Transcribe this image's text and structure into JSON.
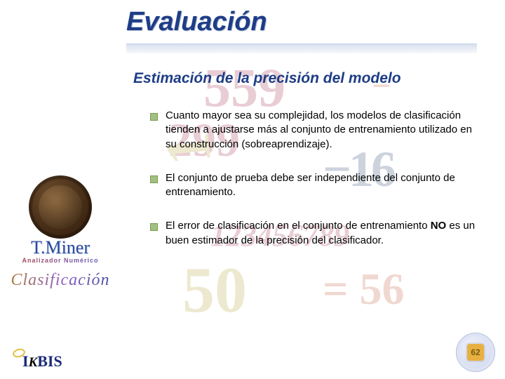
{
  "title": "Evaluación",
  "subtitle": "Estimación de la precisión del modelo",
  "bullets": {
    "b1": "Cuanto mayor sea su complejidad, los modelos de clasificación tienden a ajustarse más al conjunto de entrenamiento utilizado en su construcción (sobreaprendizaje).",
    "b2": "El conjunto de prueba debe ser independiente del conjunto de entrenamiento.",
    "b3_pre": "El error de clasificación en el conjunto de entrenamiento ",
    "b3_strong": "NO",
    "b3_post": " es un buen estimador de la precisión del clasificador."
  },
  "sidebar": {
    "tminer": "T.Miner",
    "analizador": "Analizador Numérico",
    "clasificacion": "Clasificación"
  },
  "footer": {
    "ikbis_i": "I",
    "ikbis_k": "K",
    "ikbis_rest": "BIS",
    "page_number": "62"
  },
  "bg_numbers": {
    "n1": "559",
    "n2": "−",
    "n3": "299",
    "n4": "−16",
    "n5": "1",
    "n6": "123456789",
    "n7": "50",
    "n8": "= 56"
  },
  "colors": {
    "title": "#1e3d86",
    "bullet_fill": "#a2c080",
    "bullet_border": "#7a9a58",
    "page_badge_bg": "#e8b040",
    "page_badge_text": "#7a5a10"
  }
}
